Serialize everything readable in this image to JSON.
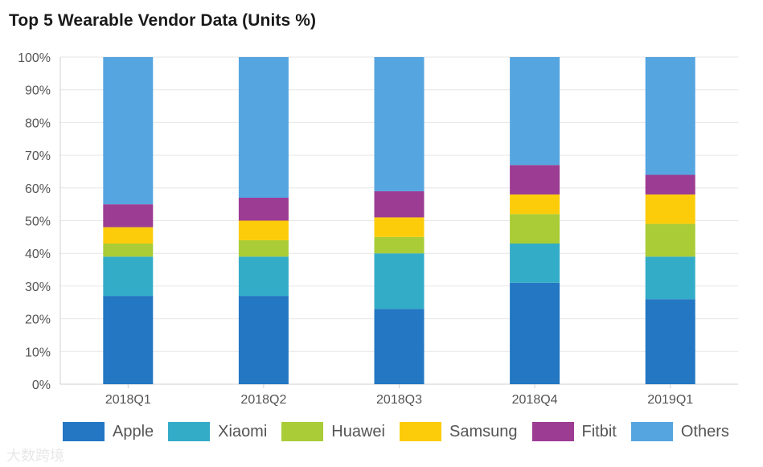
{
  "chart_data": {
    "type": "bar",
    "stacked": true,
    "title": "Top 5 Wearable Vendor Data (Units %)",
    "categories": [
      "2018Q1",
      "2018Q2",
      "2018Q3",
      "2018Q4",
      "2019Q1"
    ],
    "ylim": [
      0,
      100
    ],
    "yticks": [
      "0%",
      "10%",
      "20%",
      "30%",
      "40%",
      "50%",
      "60%",
      "70%",
      "80%",
      "90%",
      "100%"
    ],
    "grid": true,
    "legend_position": "bottom",
    "series": [
      {
        "name": "Apple",
        "color": "#2377c3",
        "values": [
          27,
          27,
          23,
          31,
          26
        ]
      },
      {
        "name": "Xiaomi",
        "color": "#33acc8",
        "values": [
          12,
          12,
          17,
          12,
          13
        ]
      },
      {
        "name": "Huawei",
        "color": "#a9cc37",
        "values": [
          4,
          5,
          5,
          9,
          10
        ]
      },
      {
        "name": "Samsung",
        "color": "#fccc0a",
        "values": [
          5,
          6,
          6,
          6,
          9
        ]
      },
      {
        "name": "Fitbit",
        "color": "#9c3c92",
        "values": [
          7,
          7,
          8,
          9,
          6
        ]
      },
      {
        "name": "Others",
        "color": "#55a5e0",
        "values": [
          45,
          43,
          41,
          33,
          36
        ]
      }
    ]
  },
  "watermark": "大数跨境"
}
